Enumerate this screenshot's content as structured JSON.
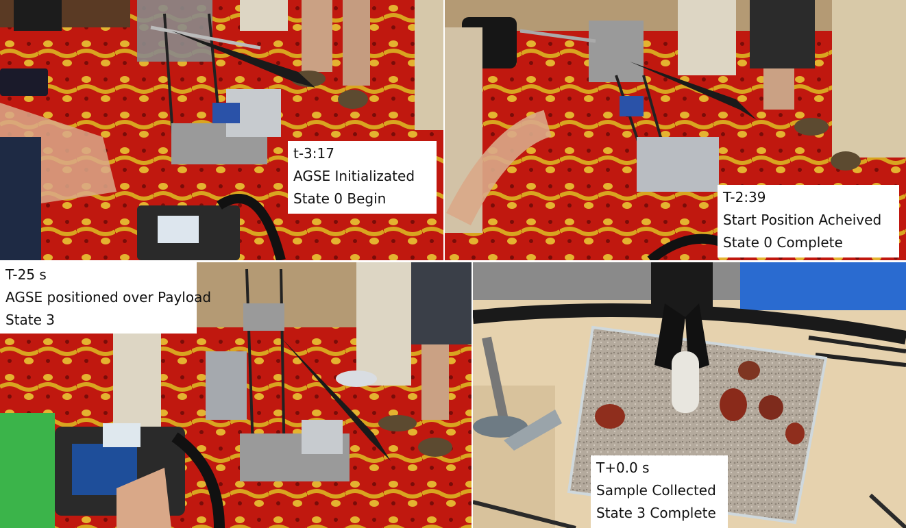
{
  "panels": [
    {
      "caption": {
        "time": "t-3:17",
        "line1": "AGSE Initializated",
        "line2": "State 0 Begin"
      }
    },
    {
      "caption": {
        "time": "T-2:39",
        "line1": "Start Position Acheived",
        "line2": "State 0 Complete"
      }
    },
    {
      "caption": {
        "time": "T-25 s",
        "line1": "AGSE positioned over Payload",
        "line2": "State 3"
      }
    },
    {
      "caption": {
        "time": "T+0.0 s",
        "line1": "Sample Collected",
        "line2": "State 3 Complete"
      }
    }
  ],
  "colors": {
    "carpet_red": "#b8140f",
    "carpet_gold": "#d7a21a",
    "wood": "#e8d4b0",
    "gravel": "#b6aca0",
    "tarp_blue": "#2a6bd0"
  }
}
